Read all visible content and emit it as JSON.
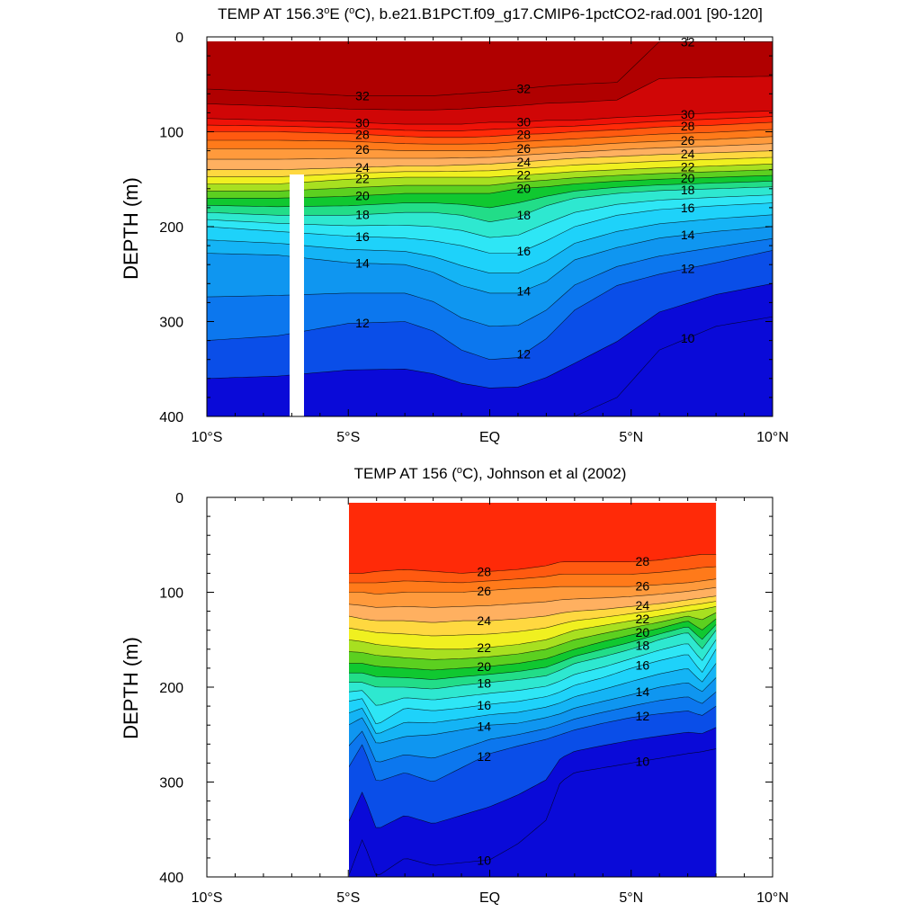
{
  "figure": {
    "panels": [
      {
        "title_main": "TEMP AT 156.3",
        "title_deg": "o",
        "title_tail": "E (",
        "title_deg2": "o",
        "title_end": "C), b.e21.B1PCT.f09_g17.CMIP6-1pctCO2-rad.001 [90-120]"
      },
      {
        "title_main": "TEMP AT 156 (",
        "title_deg": "o",
        "title_tail": "C), Johnson et al (2002)"
      }
    ]
  },
  "chart_data": [
    {
      "type": "contour",
      "title": "TEMP AT 156.3°E (°C), b.e21.B1PCT.f09_g17.CMIP6-1pctCO2-rad.001 [90-120]",
      "xlabel": "",
      "ylabel": "DEPTH (m)",
      "xlim": [
        -10,
        10
      ],
      "ylim": [
        400,
        0
      ],
      "x_ticks": [
        -10,
        -5,
        0,
        5,
        10
      ],
      "x_tick_labels": [
        "10°S",
        "5°S",
        "EQ",
        "5°N",
        "10°N"
      ],
      "y_ticks": [
        0,
        100,
        200,
        300,
        400
      ],
      "y_tick_labels": [
        "0",
        "100",
        "200",
        "300",
        "400"
      ],
      "data_lat_range": [
        -10,
        10
      ],
      "missing_column_lat": [
        -7.3,
        -6.8
      ],
      "missing_column_depth_top": 145,
      "contour_interval": 1,
      "labeled_contours": [
        32,
        30,
        28,
        26,
        24,
        22,
        20,
        18,
        16,
        14,
        12,
        10
      ],
      "isotherm_depths": {
        "lat": [
          -10,
          -7.5,
          -5,
          -3,
          -2,
          -1,
          0,
          1,
          2,
          3,
          4.5,
          6,
          8,
          10
        ],
        "levels": [
          {
            "t": 32,
            "depth": [
              55,
              58,
              62,
              62,
              62,
              60,
              58,
              55,
              52,
              50,
              48,
              5,
              5,
              5
            ]
          },
          {
            "t": 30,
            "depth": [
              86,
              88,
              90,
              92,
              92,
              92,
              90,
              90,
              88,
              88,
              85,
              83,
              80,
              78
            ]
          },
          {
            "t": 28,
            "depth": [
              100,
              100,
              102,
              105,
              106,
              106,
              105,
              103,
              102,
              100,
              98,
              95,
              93,
              90
            ]
          },
          {
            "t": 26,
            "depth": [
              118,
              118,
              118,
              120,
              120,
              120,
              120,
              118,
              116,
              115,
              112,
              110,
              108,
              105
            ]
          },
          {
            "t": 24,
            "depth": [
              140,
              140,
              138,
              136,
              136,
              135,
              134,
              132,
              130,
              128,
              126,
              124,
              122,
              120
            ]
          },
          {
            "t": 22,
            "depth": [
              155,
              155,
              150,
              148,
              148,
              148,
              148,
              146,
              144,
              142,
              140,
              138,
              136,
              134
            ]
          },
          {
            "t": 20,
            "depth": [
              170,
              170,
              168,
              165,
              165,
              165,
              165,
              160,
              158,
              155,
              152,
              150,
              148,
              146
            ]
          },
          {
            "t": 18,
            "depth": [
              185,
              188,
              188,
              185,
              185,
              188,
              195,
              190,
              178,
              170,
              165,
              162,
              160,
              158
            ]
          },
          {
            "t": 16,
            "depth": [
              200,
              205,
              210,
              212,
              215,
              220,
              228,
              228,
              215,
              200,
              188,
              182,
              178,
              175
            ]
          },
          {
            "t": 14,
            "depth": [
              228,
              230,
              238,
              240,
              248,
              262,
              270,
              270,
              258,
              235,
              222,
              212,
              205,
              200
            ]
          },
          {
            "t": 12,
            "depth": [
              320,
              315,
              302,
              300,
              310,
              330,
              340,
              338,
              318,
              288,
              262,
              250,
              238,
              225
            ]
          },
          {
            "t": 10,
            "depth": [
              400,
              400,
              400,
              400,
              400,
              400,
              400,
              400,
              400,
              400,
              380,
              330,
              305,
              295
            ]
          }
        ]
      }
    },
    {
      "type": "contour",
      "title": "TEMP AT 156 (°C), Johnson et al (2002)",
      "xlabel": "",
      "ylabel": "DEPTH (m)",
      "xlim": [
        -10,
        10
      ],
      "ylim": [
        400,
        0
      ],
      "x_ticks": [
        -10,
        -5,
        0,
        5,
        10
      ],
      "x_tick_labels": [
        "10°S",
        "5°S",
        "EQ",
        "5°N",
        "10°N"
      ],
      "y_ticks": [
        0,
        100,
        200,
        300,
        400
      ],
      "y_tick_labels": [
        "0",
        "100",
        "200",
        "300",
        "400"
      ],
      "data_lat_range": [
        -5,
        8
      ],
      "contour_interval": 1,
      "labeled_contours": [
        28,
        26,
        24,
        22,
        20,
        18,
        16,
        14,
        12,
        10
      ],
      "isotherm_depths": {
        "lat": [
          -5,
          -4.5,
          -4,
          -3,
          -2,
          -1,
          0,
          1,
          2,
          2.5,
          3,
          4,
          5,
          6,
          7,
          7.5,
          8
        ],
        "levels": [
          {
            "t": 28,
            "depth": [
              80,
              80,
              78,
              76,
              78,
              80,
              78,
              76,
              72,
              68,
              68,
              68,
              68,
              66,
              62,
              60,
              60
            ]
          },
          {
            "t": 26,
            "depth": [
              100,
              100,
              102,
              100,
              100,
              100,
              98,
              96,
              95,
              94,
              94,
              94,
              94,
              92,
              90,
              88,
              86
            ]
          },
          {
            "t": 24,
            "depth": [
              125,
              128,
              130,
              130,
              132,
              130,
              130,
              128,
              125,
              122,
              120,
              118,
              115,
              112,
              108,
              106,
              104
            ]
          },
          {
            "t": 22,
            "depth": [
              150,
              152,
              155,
              158,
              160,
              160,
              158,
              155,
              150,
              145,
              140,
              135,
              130,
              125,
              120,
              118,
              115
            ]
          },
          {
            "t": 20,
            "depth": [
              175,
              175,
              178,
              180,
              182,
              180,
              178,
              175,
              170,
              165,
              160,
              152,
              145,
              138,
              130,
              140,
              128
            ]
          },
          {
            "t": 18,
            "depth": [
              195,
              195,
              200,
              200,
              202,
              198,
              195,
              192,
              188,
              182,
              175,
              168,
              160,
              150,
              142,
              160,
              140
            ]
          },
          {
            "t": 16,
            "depth": [
              215,
              212,
              240,
              222,
              225,
              222,
              218,
              215,
              210,
              205,
              198,
              190,
              180,
              172,
              165,
              185,
              160
            ]
          },
          {
            "t": 14,
            "depth": [
              240,
              232,
              260,
              252,
              250,
              245,
              240,
              238,
              232,
              228,
              222,
              215,
              208,
              200,
              195,
              205,
              190
            ]
          },
          {
            "t": 12,
            "depth": [
              285,
              260,
              300,
              290,
              300,
              285,
              270,
              262,
              255,
              250,
              245,
              238,
              232,
              228,
              225,
              230,
              220
            ]
          },
          {
            "t": 10,
            "depth": [
              400,
              360,
              400,
              380,
              388,
              385,
              382,
              365,
              340,
              300,
              290,
              285,
              280,
              275,
              270,
              268,
              265
            ]
          }
        ]
      }
    }
  ],
  "colors": {
    "scale_cold_to_warm": [
      "#0a0ad8",
      "#0a4ee8",
      "#0c77ee",
      "#0f96f0",
      "#14b4f5",
      "#1ed2fa",
      "#2ee6f5",
      "#2ee8d0",
      "#22dd88",
      "#10c830",
      "#5cd020",
      "#a8e020",
      "#f0f020",
      "#ffd840",
      "#ffb060",
      "#ff9a3c",
      "#ff7a1a",
      "#ff5a10",
      "#ff2a08",
      "#ee1208",
      "#d00606",
      "#b00000"
    ]
  }
}
